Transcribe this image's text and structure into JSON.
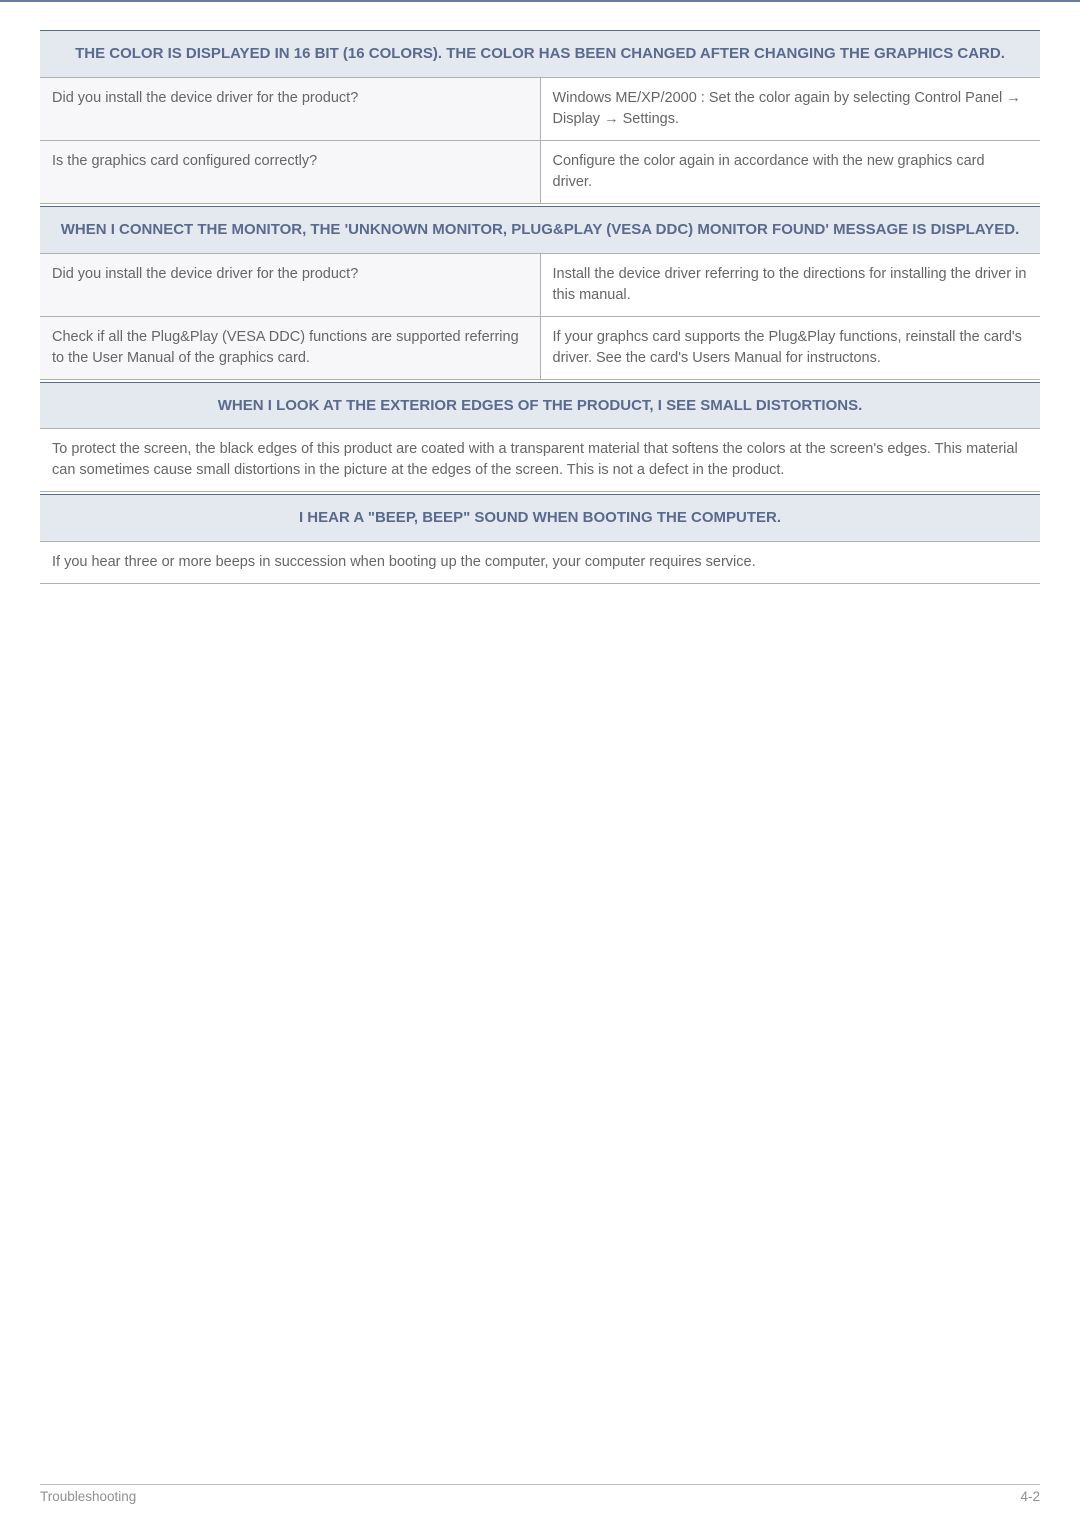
{
  "section1": {
    "header": "THE COLOR IS DISPLAYED IN 16 BIT (16 COLORS). THE COLOR HAS BEEN CHANGED AFTER CHANGING THE GRAPHICS CARD.",
    "rows": [
      {
        "q": "Did you install the device driver for the product?",
        "a": "Windows ME/XP/2000 : Set the color again by selecting Control Panel → Display → Settings."
      },
      {
        "q": "Is the graphics card configured correctly?",
        "a": "Configure the color again in accordance with the new graphics card driver."
      }
    ]
  },
  "section2": {
    "header": "WHEN I CONNECT THE MONITOR, THE 'UNKNOWN MONITOR, PLUG&PLAY (VESA DDC) MONITOR FOUND' MESSAGE IS DISPLAYED.",
    "rows": [
      {
        "q": "Did you install the device driver for the product?",
        "a": "Install the device driver referring to the directions for installing the driver in this manual."
      },
      {
        "q": "Check if all the Plug&Play (VESA DDC) functions are supported referring to the User Manual of the graphics card.",
        "a": "If your graphcs card supports the Plug&Play functions, reinstall the card's driver. See the card's Users Manual for instructons."
      }
    ]
  },
  "section3": {
    "header": "WHEN I LOOK AT THE EXTERIOR EDGES OF THE PRODUCT, I SEE SMALL DISTORTIONS.",
    "body": "To protect the screen, the black edges of this product are coated with a transparent material that softens the colors at the screen's edges. This material can sometimes cause small distortions in the picture at the edges of the screen. This is not a defect in the product."
  },
  "section4": {
    "header": "I HEAR A \"BEEP, BEEP\" SOUND WHEN BOOTING THE COMPUTER.",
    "body": "If you hear three or more beeps in succession when booting up the computer, your computer requires service."
  },
  "footer": {
    "left": "Troubleshooting",
    "right": "4-2"
  }
}
